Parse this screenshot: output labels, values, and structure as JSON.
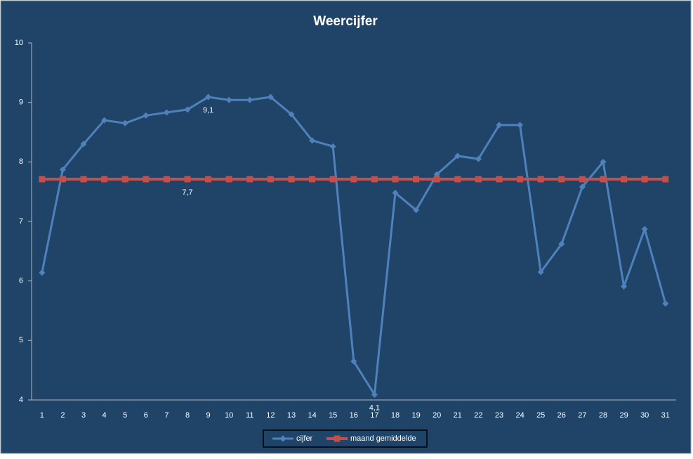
{
  "chart_data": {
    "type": "line",
    "title": "Weercijfer",
    "categories": [
      "1",
      "2",
      "3",
      "4",
      "5",
      "6",
      "7",
      "8",
      "9",
      "10",
      "11",
      "12",
      "13",
      "14",
      "15",
      "16",
      "17",
      "18",
      "19",
      "20",
      "21",
      "22",
      "23",
      "24",
      "25",
      "26",
      "27",
      "28",
      "29",
      "30",
      "31"
    ],
    "series": [
      {
        "name": "cijfer",
        "color": "#4f81bd",
        "marker": "diamond",
        "values": [
          6.14,
          7.87,
          8.3,
          8.7,
          8.65,
          8.78,
          8.83,
          8.88,
          9.09,
          9.04,
          9.04,
          9.09,
          8.8,
          8.36,
          8.26,
          4.65,
          4.09,
          7.48,
          7.19,
          7.79,
          8.1,
          8.05,
          8.62,
          8.62,
          6.15,
          6.62,
          7.58,
          8.0,
          5.91,
          6.87,
          5.62
        ],
        "value_labels": [
          null,
          null,
          null,
          null,
          null,
          null,
          null,
          null,
          "9,1",
          null,
          null,
          null,
          null,
          null,
          null,
          null,
          "4,1",
          null,
          null,
          null,
          null,
          null,
          null,
          null,
          null,
          null,
          null,
          null,
          null,
          null,
          null
        ]
      },
      {
        "name": "maand gemiddelde",
        "color": "#c0504d",
        "marker": "square",
        "values": [
          7.71,
          7.71,
          7.71,
          7.71,
          7.71,
          7.71,
          7.71,
          7.71,
          7.71,
          7.71,
          7.71,
          7.71,
          7.71,
          7.71,
          7.71,
          7.71,
          7.71,
          7.71,
          7.71,
          7.71,
          7.71,
          7.71,
          7.71,
          7.71,
          7.71,
          7.71,
          7.71,
          7.71,
          7.71,
          7.71,
          7.71
        ],
        "value_labels": [
          null,
          null,
          null,
          null,
          null,
          null,
          null,
          "7,7",
          null,
          null,
          null,
          null,
          null,
          null,
          null,
          null,
          null,
          null,
          null,
          null,
          null,
          null,
          null,
          null,
          null,
          null,
          null,
          null,
          null,
          null,
          null
        ]
      }
    ],
    "ylim": [
      4,
      10
    ],
    "yticks": [
      4,
      5,
      6,
      7,
      8,
      9,
      10
    ],
    "legend": "bottom"
  }
}
